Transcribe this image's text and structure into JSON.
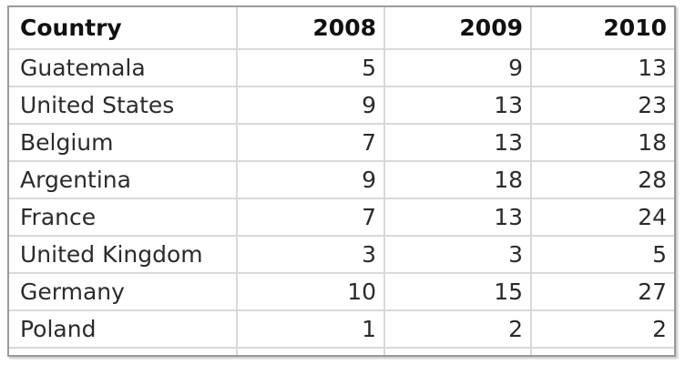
{
  "chart_data": {
    "type": "table",
    "columns": [
      "Country",
      "2008",
      "2009",
      "2010"
    ],
    "rows": [
      [
        "Guatemala",
        "5",
        "9",
        "13"
      ],
      [
        "United States",
        "9",
        "13",
        "23"
      ],
      [
        "Belgium",
        "7",
        "13",
        "18"
      ],
      [
        "Argentina",
        "9",
        "18",
        "28"
      ],
      [
        "France",
        "7",
        "13",
        "24"
      ],
      [
        "United Kingdom",
        "3",
        "3",
        "5"
      ],
      [
        "Germany",
        "10",
        "15",
        "27"
      ],
      [
        "Poland",
        "1",
        "2",
        "2"
      ]
    ]
  }
}
